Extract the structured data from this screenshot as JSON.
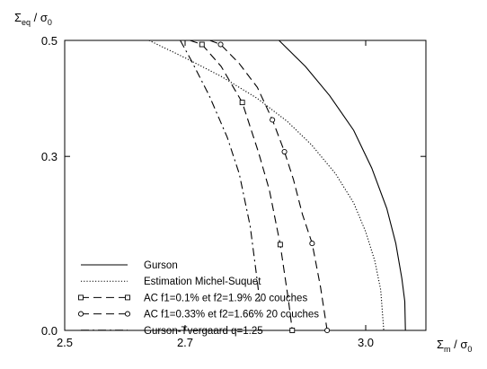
{
  "chart_data": {
    "type": "line",
    "xlabel": {
      "main": "Σ",
      "sub": "m",
      "rest": " / σ",
      "sub2": "0"
    },
    "ylabel": {
      "main": "Σ",
      "sub": "eq",
      "rest": " / σ",
      "sub2": "0"
    },
    "xlim": [
      2.5,
      3.1
    ],
    "ylim": [
      0.0,
      0.5
    ],
    "xticks": [
      {
        "value": 2.5,
        "label": "2.5"
      },
      {
        "value": 2.7,
        "label": "2.7"
      },
      {
        "value": 3.0,
        "label": "3.0"
      }
    ],
    "yticks": [
      {
        "value": 0.0,
        "label": "0.0"
      },
      {
        "value": 0.3,
        "label": "0.3"
      },
      {
        "value": 0.5,
        "label": "0.5"
      }
    ],
    "grid": false,
    "legend_position": "bottom-left",
    "series": [
      {
        "name": "Gurson",
        "style": "solid",
        "marker": "none",
        "points": [
          [
            2.856,
            0.5
          ],
          [
            2.9,
            0.455
          ],
          [
            2.94,
            0.405
          ],
          [
            2.98,
            0.345
          ],
          [
            3.01,
            0.28
          ],
          [
            3.035,
            0.21
          ],
          [
            3.05,
            0.15
          ],
          [
            3.06,
            0.09
          ],
          [
            3.065,
            0.05
          ],
          [
            3.066,
            0.0
          ]
        ]
      },
      {
        "name": "Estimation Michel-Suquet",
        "style": "dotted",
        "marker": "none",
        "points": [
          [
            2.64,
            0.5
          ],
          [
            2.7,
            0.47
          ],
          [
            2.76,
            0.438
          ],
          [
            2.82,
            0.4
          ],
          [
            2.87,
            0.36
          ],
          [
            2.91,
            0.32
          ],
          [
            2.95,
            0.27
          ],
          [
            2.98,
            0.22
          ],
          [
            3.0,
            0.17
          ],
          [
            3.015,
            0.12
          ],
          [
            3.025,
            0.07
          ],
          [
            3.03,
            0.0
          ]
        ]
      },
      {
        "name": "AC f1=0.1% et f2=1.9% 20 couches",
        "style": "dashed",
        "marker": "square",
        "points": [
          [
            2.708,
            0.5
          ],
          [
            2.728,
            0.493
          ],
          [
            2.76,
            0.455
          ],
          [
            2.795,
            0.393
          ],
          [
            2.822,
            0.307
          ],
          [
            2.84,
            0.242
          ],
          [
            2.858,
            0.148
          ],
          [
            2.872,
            0.05
          ],
          [
            2.878,
            0.0
          ]
        ],
        "markers": [
          [
            2.728,
            0.493
          ],
          [
            2.795,
            0.393
          ],
          [
            2.858,
            0.148
          ],
          [
            2.878,
            0.0
          ]
        ]
      },
      {
        "name": "AC f1=0.33% et f2=1.66% 20 couches",
        "style": "dashed",
        "marker": "circle",
        "points": [
          [
            2.741,
            0.5
          ],
          [
            2.759,
            0.493
          ],
          [
            2.79,
            0.46
          ],
          [
            2.82,
            0.419
          ],
          [
            2.845,
            0.363
          ],
          [
            2.865,
            0.308
          ],
          [
            2.88,
            0.26
          ],
          [
            2.895,
            0.2
          ],
          [
            2.911,
            0.15
          ],
          [
            2.925,
            0.075
          ],
          [
            2.936,
            0.0
          ]
        ],
        "markers": [
          [
            2.759,
            0.493
          ],
          [
            2.845,
            0.363
          ],
          [
            2.865,
            0.308
          ],
          [
            2.911,
            0.15
          ],
          [
            2.936,
            0.0
          ]
        ]
      },
      {
        "name": "Gurson-Tvergaard q=1.25",
        "style": "dashdot",
        "marker": "none",
        "points": [
          [
            2.692,
            0.5
          ],
          [
            2.71,
            0.466
          ],
          [
            2.74,
            0.405
          ],
          [
            2.77,
            0.333
          ],
          [
            2.79,
            0.27
          ],
          [
            2.808,
            0.18
          ],
          [
            2.818,
            0.1
          ],
          [
            2.824,
            0.05
          ]
        ]
      }
    ]
  }
}
